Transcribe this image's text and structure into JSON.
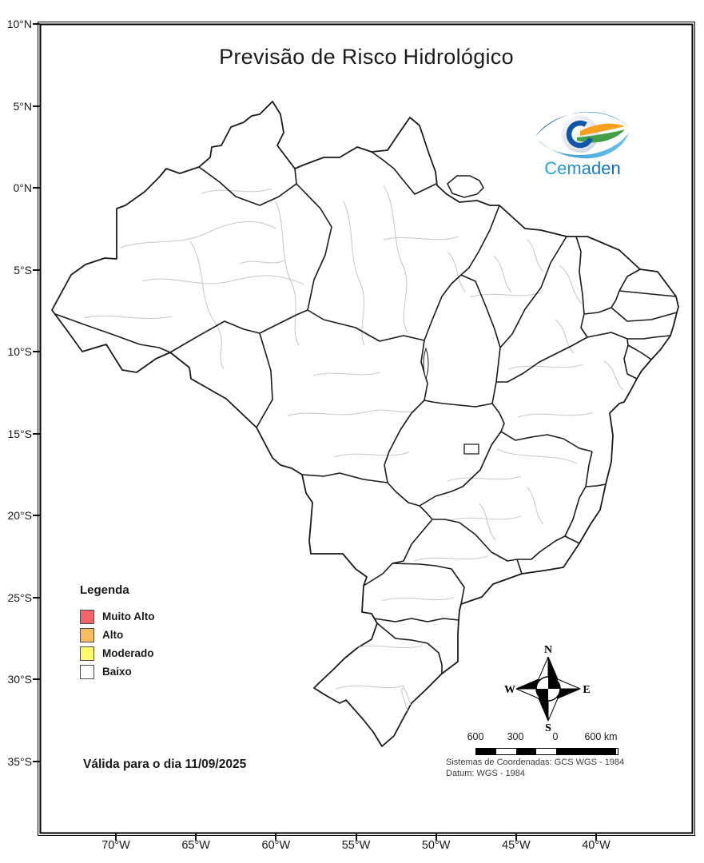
{
  "title": "Previsão de Risco Hidrológico",
  "logo": {
    "brand": "Cemaden"
  },
  "legend": {
    "title": "Legenda",
    "items": [
      {
        "label": "Muito Alto",
        "color": "#f4646b"
      },
      {
        "label": "Alto",
        "color": "#f9bd61"
      },
      {
        "label": "Moderado",
        "color": "#fbfb6b"
      },
      {
        "label": "Baixo",
        "color": "#ffffff"
      }
    ]
  },
  "validity": "Válida para o dia 11/09/2025",
  "compass": {
    "n": "N",
    "s": "S",
    "e": "E",
    "w": "W"
  },
  "scalebar": {
    "labels": [
      "600",
      "300",
      "0",
      "600 km"
    ]
  },
  "projection": {
    "line1": "Sistemas de Coordenadas: GCS WGS - 1984",
    "line2": "Datum: WGS - 1984"
  },
  "axes": {
    "lat": [
      "10°N",
      "5°N",
      "0°N",
      "5°S",
      "10°S",
      "15°S",
      "20°S",
      "25°S",
      "30°S",
      "35°S"
    ],
    "lon": [
      "70°W",
      "65°W",
      "60°W",
      "55°W",
      "50°W",
      "45°W",
      "40°W"
    ]
  },
  "colors": {
    "state_border": "#1a1a1a",
    "basin_border": "#c9c9c9",
    "frame": "#000000",
    "brand_blue_dark": "#1464ae",
    "brand_blue_light": "#2ba8dc",
    "logo_orange": "#f6a01e",
    "logo_green": "#43a047"
  }
}
